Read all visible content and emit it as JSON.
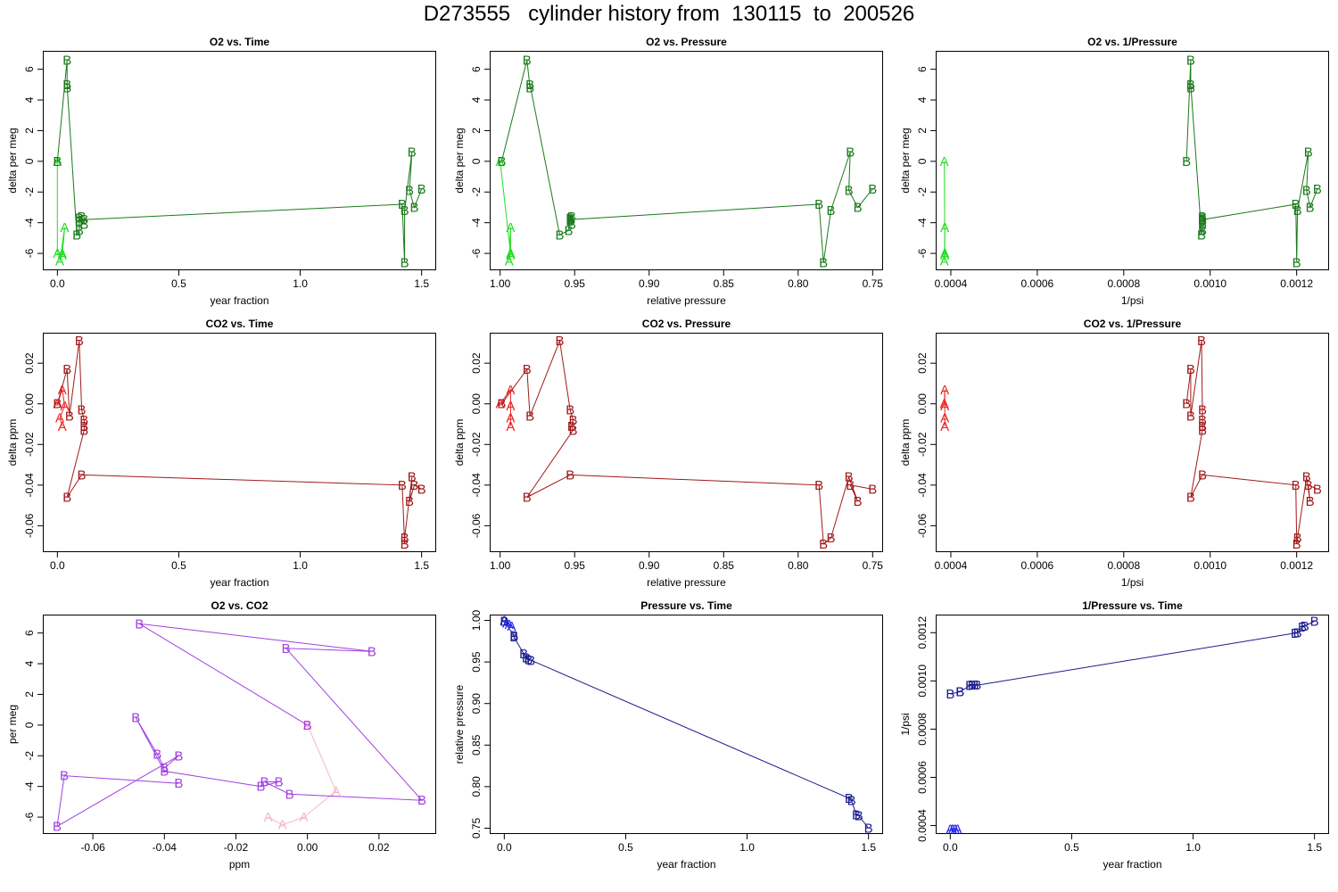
{
  "page_title": "D273555   cylinder history from  130115  to  200526",
  "colors": {
    "A_green": "#22dd22",
    "B_green": "#1a7a1a",
    "A_red": "#ee2222",
    "B_red": "#a01818",
    "A_purple": "#f4b8c4",
    "B_purple": "#a040e0",
    "A_blue": "#2222ee",
    "B_blue": "#1a1a90"
  },
  "chart_data": [
    {
      "type": "line",
      "title": "O2 vs. Time",
      "xlabel": "year fraction",
      "ylabel": "delta per meg",
      "xlim": [
        -0.06,
        1.56
      ],
      "ylim": [
        -7.1,
        7.2
      ],
      "xticks": [
        0,
        0.5,
        1,
        1.5
      ],
      "xtick_labels": [
        "0.0",
        "0.5",
        "1.0",
        "1.5"
      ],
      "yticks": [
        -6,
        -4,
        -2,
        0,
        2,
        4,
        6
      ],
      "ytick_labels": [
        "-6",
        "-4",
        "-2",
        "0",
        "2",
        "4",
        "6"
      ],
      "series": [
        {
          "name": "A",
          "color": "#22dd22",
          "x": [
            0.0,
            0.0,
            0.02,
            0.03,
            0.01,
            0.02
          ],
          "y": [
            0.0,
            -6.0,
            -6.1,
            -4.3,
            -6.5,
            -6.0
          ]
        },
        {
          "name": "B",
          "color": "#1a7a1a",
          "x": [
            0.0,
            0.04,
            0.04,
            0.04,
            0.08,
            0.09,
            0.09,
            0.09,
            0.1,
            0.11,
            0.11,
            1.42,
            1.43,
            1.43,
            1.46,
            1.45,
            1.47,
            1.5
          ],
          "y": [
            0.0,
            6.6,
            4.8,
            5.0,
            -4.8,
            -4.5,
            -3.7,
            -3.9,
            -3.6,
            -4.1,
            -3.8,
            -2.8,
            -6.6,
            -3.2,
            0.6,
            -1.9,
            -3.0,
            -1.8
          ]
        }
      ]
    },
    {
      "type": "line",
      "title": "O2 vs. Pressure",
      "xlabel": "relative pressure",
      "ylabel": "delta per meg",
      "xlim": [
        1.007,
        0.743
      ],
      "ylim": [
        -7.1,
        7.2
      ],
      "xticks": [
        1.0,
        0.95,
        0.9,
        0.85,
        0.8,
        0.75
      ],
      "xtick_labels": [
        "1.00",
        "0.95",
        "0.90",
        "0.85",
        "0.80",
        "0.75"
      ],
      "yticks": [
        -6,
        -4,
        -2,
        0,
        2,
        4,
        6
      ],
      "ytick_labels": [
        "-6",
        "-4",
        "-2",
        "0",
        "2",
        "4",
        "6"
      ],
      "series": [
        {
          "name": "A",
          "color": "#22dd22",
          "x": [
            1.0,
            0.993,
            0.993,
            0.993,
            0.994,
            0.993
          ],
          "y": [
            0.0,
            -6.0,
            -6.1,
            -4.3,
            -6.5,
            -6.0
          ]
        },
        {
          "name": "B",
          "color": "#1a7a1a",
          "x": [
            0.999,
            0.982,
            0.98,
            0.98,
            0.96,
            0.954,
            0.953,
            0.953,
            0.952,
            0.952,
            0.953,
            0.786,
            0.783,
            0.778,
            0.765,
            0.766,
            0.76,
            0.75
          ],
          "y": [
            0.0,
            6.6,
            4.8,
            5.0,
            -4.8,
            -4.5,
            -3.7,
            -3.9,
            -3.6,
            -4.1,
            -3.8,
            -2.8,
            -6.6,
            -3.2,
            0.6,
            -1.9,
            -3.0,
            -1.8
          ]
        }
      ]
    },
    {
      "type": "line",
      "title": "O2 vs. 1/Pressure",
      "xlabel": "1/psi",
      "ylabel": "delta per meg",
      "xlim": [
        0.000365,
        0.001275
      ],
      "ylim": [
        -7.1,
        7.2
      ],
      "xticks": [
        0.0004,
        0.0006,
        0.0008,
        0.001,
        0.0012
      ],
      "xtick_labels": [
        "0.0004",
        "0.0006",
        "0.0008",
        "0.0010",
        "0.0012"
      ],
      "yticks": [
        -6,
        -4,
        -2,
        0,
        2,
        4,
        6
      ],
      "ytick_labels": [
        "-6",
        "-4",
        "-2",
        "0",
        "2",
        "4",
        "6"
      ],
      "series": [
        {
          "name": "A",
          "color": "#22dd22",
          "x": [
            0.000385,
            0.000386,
            0.000386,
            0.000386,
            0.000385,
            0.000386
          ],
          "y": [
            0.0,
            -6.0,
            -6.1,
            -4.3,
            -6.5,
            -6.0
          ]
        },
        {
          "name": "B",
          "color": "#1a7a1a",
          "x": [
            0.000945,
            0.000955,
            0.000955,
            0.000955,
            0.00098,
            0.000982,
            0.000982,
            0.000982,
            0.000982,
            0.000982,
            0.000982,
            0.001198,
            0.0012,
            0.001202,
            0.001227,
            0.001223,
            0.001231,
            0.001248
          ],
          "y": [
            0.0,
            6.6,
            4.8,
            5.0,
            -4.8,
            -4.5,
            -3.7,
            -3.9,
            -3.6,
            -4.1,
            -3.8,
            -2.8,
            -6.6,
            -3.2,
            0.6,
            -1.9,
            -3.0,
            -1.8
          ]
        }
      ]
    },
    {
      "type": "line",
      "title": "CO2 vs. Time",
      "xlabel": "year fraction",
      "ylabel": "delta ppm",
      "xlim": [
        -0.06,
        1.56
      ],
      "ylim": [
        -0.073,
        0.035
      ],
      "xticks": [
        0,
        0.5,
        1,
        1.5
      ],
      "xtick_labels": [
        "0.0",
        "0.5",
        "1.0",
        "1.5"
      ],
      "yticks": [
        -0.06,
        -0.04,
        -0.02,
        0.0,
        0.02
      ],
      "ytick_labels": [
        "-0.06",
        "-0.04",
        "-0.02",
        "0.00",
        "0.02"
      ],
      "series": [
        {
          "name": "A",
          "color": "#ee2222",
          "x": [
            0.0,
            0.02,
            0.03,
            0.01,
            0.02
          ],
          "y": [
            0.0,
            0.007,
            -0.001,
            -0.007,
            -0.011
          ]
        },
        {
          "name": "B",
          "color": "#a01818",
          "x": [
            0.0,
            0.04,
            0.05,
            0.09,
            0.1,
            0.11,
            0.11,
            0.11,
            0.04,
            0.1,
            1.42,
            1.43,
            1.43,
            1.46,
            1.45,
            1.47,
            1.5
          ],
          "y": [
            0.0,
            0.017,
            -0.006,
            0.031,
            -0.003,
            -0.008,
            -0.011,
            -0.013,
            -0.046,
            -0.035,
            -0.04,
            -0.069,
            -0.066,
            -0.036,
            -0.048,
            -0.04,
            -0.042
          ]
        }
      ]
    },
    {
      "type": "line",
      "title": "CO2 vs. Pressure",
      "xlabel": "relative pressure",
      "ylabel": "delta ppm",
      "xlim": [
        1.007,
        0.743
      ],
      "ylim": [
        -0.073,
        0.035
      ],
      "xticks": [
        1.0,
        0.95,
        0.9,
        0.85,
        0.8,
        0.75
      ],
      "xtick_labels": [
        "1.00",
        "0.95",
        "0.90",
        "0.85",
        "0.80",
        "0.75"
      ],
      "yticks": [
        -0.06,
        -0.04,
        -0.02,
        0.0,
        0.02
      ],
      "ytick_labels": [
        "-0.06",
        "-0.04",
        "-0.02",
        "0.00",
        "0.02"
      ],
      "series": [
        {
          "name": "A",
          "color": "#ee2222",
          "x": [
            1.0,
            0.993,
            0.993,
            0.993,
            0.993
          ],
          "y": [
            0.0,
            0.007,
            -0.001,
            -0.007,
            -0.011
          ]
        },
        {
          "name": "B",
          "color": "#a01818",
          "x": [
            0.999,
            0.982,
            0.98,
            0.96,
            0.953,
            0.951,
            0.952,
            0.951,
            0.982,
            0.953,
            0.786,
            0.783,
            0.778,
            0.766,
            0.76,
            0.765,
            0.75
          ],
          "y": [
            0.0,
            0.017,
            -0.006,
            0.031,
            -0.003,
            -0.008,
            -0.011,
            -0.013,
            -0.046,
            -0.035,
            -0.04,
            -0.069,
            -0.066,
            -0.036,
            -0.048,
            -0.04,
            -0.042
          ]
        }
      ]
    },
    {
      "type": "line",
      "title": "CO2 vs. 1/Pressure",
      "xlabel": "1/psi",
      "ylabel": "delta ppm",
      "xlim": [
        0.000365,
        0.001275
      ],
      "ylim": [
        -0.073,
        0.035
      ],
      "xticks": [
        0.0004,
        0.0006,
        0.0008,
        0.001,
        0.0012
      ],
      "xtick_labels": [
        "0.0004",
        "0.0006",
        "0.0008",
        "0.0010",
        "0.0012"
      ],
      "yticks": [
        -0.06,
        -0.04,
        -0.02,
        0.0,
        0.02
      ],
      "ytick_labels": [
        "-0.06",
        "-0.04",
        "-0.02",
        "0.00",
        "0.02"
      ],
      "series": [
        {
          "name": "A",
          "color": "#ee2222",
          "x": [
            0.000385,
            0.000386,
            0.000386,
            0.000386,
            0.000386
          ],
          "y": [
            0.0,
            0.007,
            -0.001,
            -0.007,
            -0.011
          ]
        },
        {
          "name": "B",
          "color": "#a01818",
          "x": [
            0.000945,
            0.000955,
            0.000955,
            0.00098,
            0.000982,
            0.000982,
            0.000982,
            0.000982,
            0.000955,
            0.000982,
            0.001198,
            0.0012,
            0.001202,
            0.001223,
            0.001231,
            0.001227,
            0.001248
          ],
          "y": [
            0.0,
            0.017,
            -0.006,
            0.031,
            -0.003,
            -0.008,
            -0.011,
            -0.013,
            -0.046,
            -0.035,
            -0.04,
            -0.069,
            -0.066,
            -0.036,
            -0.048,
            -0.04,
            -0.042
          ]
        }
      ]
    },
    {
      "type": "line",
      "title": "O2 vs. CO2",
      "xlabel": "ppm",
      "ylabel": "per meg",
      "xlim": [
        -0.074,
        0.036
      ],
      "ylim": [
        -7.1,
        7.2
      ],
      "xticks": [
        -0.06,
        -0.04,
        -0.02,
        0.0,
        0.02
      ],
      "xtick_labels": [
        "-0.06",
        "-0.04",
        "-0.02",
        "0.00",
        "0.02"
      ],
      "yticks": [
        -6,
        -4,
        -2,
        0,
        2,
        4,
        6
      ],
      "ytick_labels": [
        "-6",
        "-4",
        "-2",
        "0",
        "2",
        "4",
        "6"
      ],
      "series": [
        {
          "name": "A",
          "color": "#f4b8c4",
          "x": [
            0.0,
            0.008,
            -0.001,
            -0.007,
            -0.011
          ],
          "y": [
            0.0,
            -4.3,
            -6.0,
            -6.5,
            -6.0
          ]
        },
        {
          "name": "B",
          "color": "#a040e0",
          "x": [
            0.0,
            -0.047,
            0.018,
            -0.006,
            0.032,
            -0.005,
            -0.012,
            -0.008,
            -0.013,
            -0.04,
            -0.048,
            -0.042,
            -0.04,
            -0.036,
            -0.07,
            -0.068,
            -0.036
          ],
          "y": [
            0.0,
            6.6,
            4.8,
            5.0,
            -4.9,
            -4.5,
            -3.7,
            -3.7,
            -4.0,
            -3.0,
            0.5,
            -1.9,
            -2.8,
            -2.0,
            -6.6,
            -3.3,
            -3.8
          ]
        }
      ]
    },
    {
      "type": "line",
      "title": "Pressure vs. Time",
      "xlabel": "year fraction",
      "ylabel": "relative pressure",
      "xlim": [
        -0.06,
        1.56
      ],
      "ylim": [
        0.743,
        1.007
      ],
      "xticks": [
        0,
        0.5,
        1,
        1.5
      ],
      "xtick_labels": [
        "0.0",
        "0.5",
        "1.0",
        "1.5"
      ],
      "yticks": [
        0.75,
        0.8,
        0.85,
        0.9,
        0.95,
        1.0
      ],
      "ytick_labels": [
        "0.75",
        "0.80",
        "0.85",
        "0.90",
        "0.95",
        "1.00"
      ],
      "series": [
        {
          "name": "A",
          "color": "#2222ee",
          "x": [
            0.0,
            0.01,
            0.02,
            0.03
          ],
          "y": [
            1.0,
            0.997,
            0.995,
            0.993
          ]
        },
        {
          "name": "B",
          "color": "#1a1a90",
          "x": [
            0.0,
            0.04,
            0.04,
            0.08,
            0.09,
            0.1,
            0.11,
            1.42,
            1.43,
            1.45,
            1.46,
            1.5
          ],
          "y": [
            0.999,
            0.982,
            0.98,
            0.96,
            0.955,
            0.953,
            0.952,
            0.786,
            0.783,
            0.766,
            0.765,
            0.75
          ]
        }
      ]
    },
    {
      "type": "line",
      "title": "1/Pressure vs. Time",
      "xlabel": "year fraction",
      "ylabel": "1/psi",
      "xlim": [
        -0.06,
        1.56
      ],
      "ylim": [
        0.000365,
        0.001275
      ],
      "xticks": [
        0,
        0.5,
        1,
        1.5
      ],
      "xtick_labels": [
        "0.0",
        "0.5",
        "1.0",
        "1.5"
      ],
      "yticks": [
        0.0004,
        0.0006,
        0.0008,
        0.001,
        0.0012
      ],
      "ytick_labels": [
        "0.0004",
        "0.0006",
        "0.0008",
        "0.0010",
        "0.0012"
      ],
      "series": [
        {
          "name": "A",
          "color": "#2222ee",
          "x": [
            0.0,
            0.01,
            0.02,
            0.03
          ],
          "y": [
            0.000385,
            0.000386,
            0.000386,
            0.000386
          ]
        },
        {
          "name": "B",
          "color": "#1a1a90",
          "x": [
            0.0,
            0.04,
            0.04,
            0.08,
            0.09,
            0.1,
            0.11,
            1.42,
            1.43,
            1.45,
            1.46,
            1.5
          ],
          "y": [
            0.000945,
            0.000955,
            0.000955,
            0.00098,
            0.000982,
            0.000982,
            0.000982,
            0.001198,
            0.0012,
            0.001223,
            0.001227,
            0.001248
          ]
        }
      ]
    }
  ]
}
